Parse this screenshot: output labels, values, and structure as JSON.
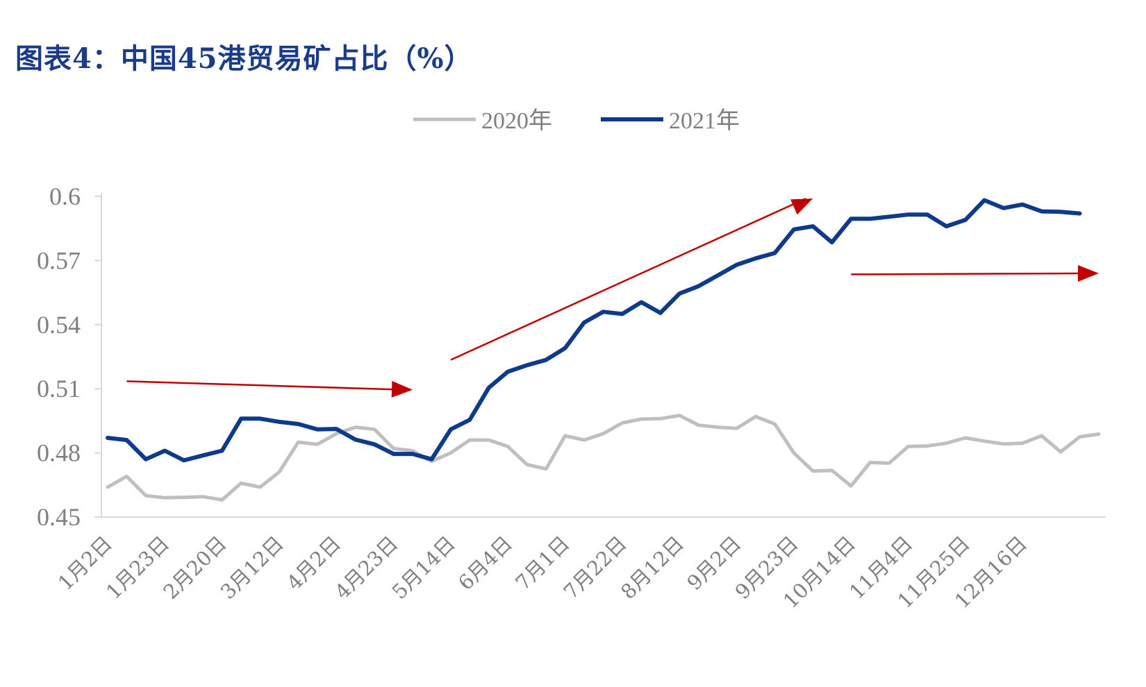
{
  "title": "图表4：中国45港贸易矿占比（%）",
  "chart_data": {
    "type": "line",
    "title": "图表4：中国45港贸易矿占比（%）",
    "xlabel": "",
    "ylabel": "",
    "ylim": [
      0.45,
      0.6
    ],
    "yticks": [
      "0.45",
      "0.48",
      "0.51",
      "0.54",
      "0.57",
      "0.6"
    ],
    "xtick_labels": [
      "1月2日",
      "1月23日",
      "2月20日",
      "3月12日",
      "4月2日",
      "4月23日",
      "5月14日",
      "6月4日",
      "7月1日",
      "7月22日",
      "8月12日",
      "9月2日",
      "9月23日",
      "10月14日",
      "11月4日",
      "11月25日",
      "12月16日"
    ],
    "legend_position": "top-center",
    "grid": false,
    "series": [
      {
        "name": "2020年",
        "color": "#bfbfbf",
        "values": [
          0.464,
          0.469,
          0.46,
          0.459,
          0.4592,
          0.4595,
          0.458,
          0.4658,
          0.464,
          0.471,
          0.485,
          0.484,
          0.489,
          0.492,
          0.491,
          0.482,
          0.481,
          0.476,
          0.48,
          0.486,
          0.486,
          0.483,
          0.4745,
          0.4725,
          0.488,
          0.486,
          0.489,
          0.494,
          0.4958,
          0.496,
          0.4975,
          0.493,
          0.492,
          0.4915,
          0.497,
          0.4935,
          0.48,
          0.4715,
          0.4718,
          0.4645,
          0.4755,
          0.4752,
          0.483,
          0.4832,
          0.4845,
          0.487,
          0.4855,
          0.4842,
          0.4845,
          0.488,
          0.4805,
          0.4875,
          0.4888
        ]
      },
      {
        "name": "2021年",
        "color": "#0d3a8c",
        "values": [
          0.487,
          0.486,
          0.477,
          0.481,
          0.4765,
          0.4788,
          0.481,
          0.496,
          0.496,
          0.4945,
          0.4935,
          0.491,
          0.4912,
          0.4862,
          0.484,
          0.4795,
          0.4795,
          0.477,
          0.491,
          0.4955,
          0.5105,
          0.518,
          0.521,
          0.5235,
          0.529,
          0.541,
          0.546,
          0.545,
          0.5505,
          0.5455,
          0.5545,
          0.558,
          0.563,
          0.568,
          0.571,
          0.5735,
          0.5845,
          0.586,
          0.5785,
          0.5895,
          0.5895,
          0.5905,
          0.5915,
          0.5915,
          0.586,
          0.589,
          0.5982,
          0.5945,
          0.5962,
          0.593,
          0.5928,
          0.592
        ]
      }
    ],
    "annotations": [
      {
        "type": "arrow",
        "color": "#c00000",
        "from": [
          1,
          0.5135
        ],
        "to": [
          16,
          0.5095
        ]
      },
      {
        "type": "arrow",
        "color": "#c00000",
        "from": [
          18,
          0.5235
        ],
        "to": [
          37,
          0.599
        ]
      },
      {
        "type": "arrow",
        "color": "#c00000",
        "from": [
          39,
          0.5635
        ],
        "to": [
          52,
          0.564
        ]
      }
    ]
  }
}
